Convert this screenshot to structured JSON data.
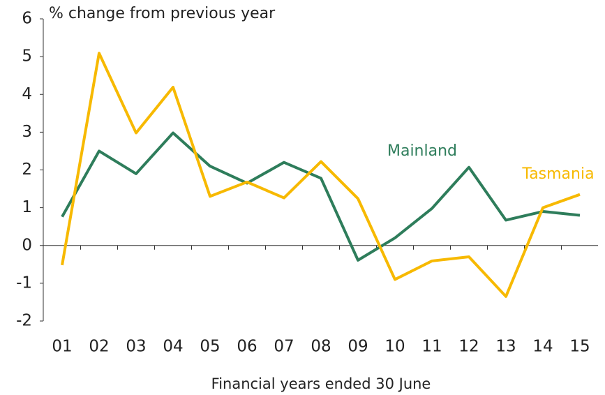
{
  "chart_data": {
    "type": "line",
    "y_label": "% change from previous year",
    "x_label": "Financial years ended 30 June",
    "categories": [
      "01",
      "02",
      "03",
      "04",
      "05",
      "06",
      "07",
      "08",
      "09",
      "10",
      "11",
      "12",
      "13",
      "14",
      "15"
    ],
    "series": [
      {
        "name": "Mainland",
        "color": "#2e7d5b",
        "values": [
          0.76,
          2.5,
          1.9,
          2.98,
          2.1,
          1.65,
          2.2,
          1.78,
          -0.39,
          0.2,
          0.98,
          2.07,
          0.67,
          0.9,
          0.8
        ]
      },
      {
        "name": "Tasmania",
        "color": "#f7b900",
        "values": [
          -0.52,
          5.09,
          2.98,
          4.19,
          1.3,
          1.68,
          1.26,
          2.22,
          1.24,
          -0.9,
          -0.41,
          -0.3,
          -1.35,
          1.0,
          1.35
        ]
      }
    ],
    "ylim": [
      -2,
      6
    ],
    "yticks": [
      -2,
      -1,
      0,
      1,
      2,
      3,
      4,
      5,
      6
    ],
    "grid": false
  }
}
